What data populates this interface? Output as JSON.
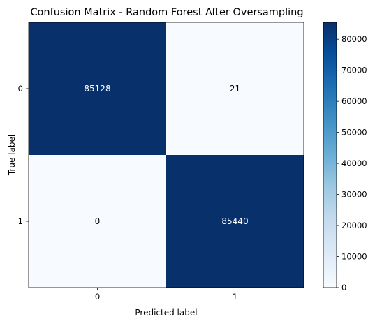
{
  "chart_data": {
    "type": "heatmap",
    "title": "Confusion Matrix - Random Forest After Oversampling",
    "xlabel": "Predicted label",
    "ylabel": "True label",
    "x_categories": [
      "0",
      "1"
    ],
    "y_categories": [
      "0",
      "1"
    ],
    "values": [
      [
        85128,
        21
      ],
      [
        0,
        85440
      ]
    ],
    "cell_text": [
      [
        "85128",
        "21"
      ],
      [
        "0",
        "85440"
      ]
    ],
    "colorbar": {
      "min": 0,
      "max": 85440,
      "ticks": [
        0,
        10000,
        20000,
        30000,
        40000,
        50000,
        60000,
        70000,
        80000
      ],
      "tick_labels": [
        "0",
        "10000",
        "20000",
        "30000",
        "40000",
        "50000",
        "60000",
        "70000",
        "80000"
      ]
    },
    "colormap": "Blues",
    "colormap_stops": [
      "#f7fbff",
      "#deebf7",
      "#c6dbef",
      "#9ecae1",
      "#6baed6",
      "#4292c6",
      "#2171b5",
      "#08519c",
      "#08306b"
    ],
    "text_colors": {
      "dark_cell": "#ffffff",
      "light_cell": "#000000"
    },
    "grid": false
  }
}
